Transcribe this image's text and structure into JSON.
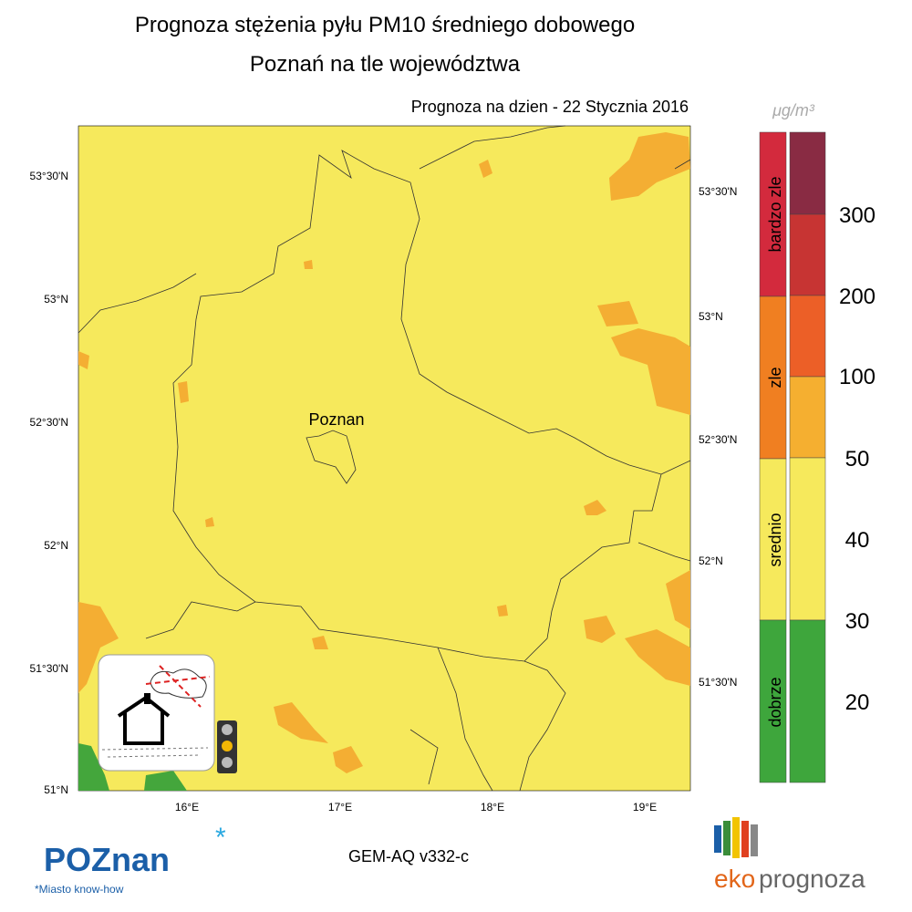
{
  "header": {
    "title": "Prognoza stężenia pyłu PM10 średniego dobowego",
    "subtitle": "Poznań na tle województwa",
    "date_label": "Prognoza na dzien -  22 Stycznia 2016"
  },
  "map": {
    "city_label": "Poznan",
    "left_lat_labels": [
      "53°30'N",
      "53°N",
      "52°30'N",
      "52°N",
      "51°30'N",
      "51°N"
    ],
    "right_lat_labels": [
      "53°30'N",
      "53°N",
      "52°30'N",
      "52°N",
      "51°30'N"
    ],
    "lon_labels": [
      "16°E",
      "17°E",
      "18°E",
      "19°E"
    ]
  },
  "legend": {
    "unit": "μg/m³",
    "categories": [
      "bardzo zle",
      "zle",
      "srednio",
      "dobrze"
    ],
    "levels": [
      300,
      200,
      100,
      50,
      40,
      30,
      20
    ]
  },
  "footer": {
    "model": "GEM-AQ v332-c",
    "poznan_logo": "POZnan",
    "poznan_tagline": "*Miasto know-how",
    "eko": "eko",
    "prognoza": "prognoza"
  }
}
